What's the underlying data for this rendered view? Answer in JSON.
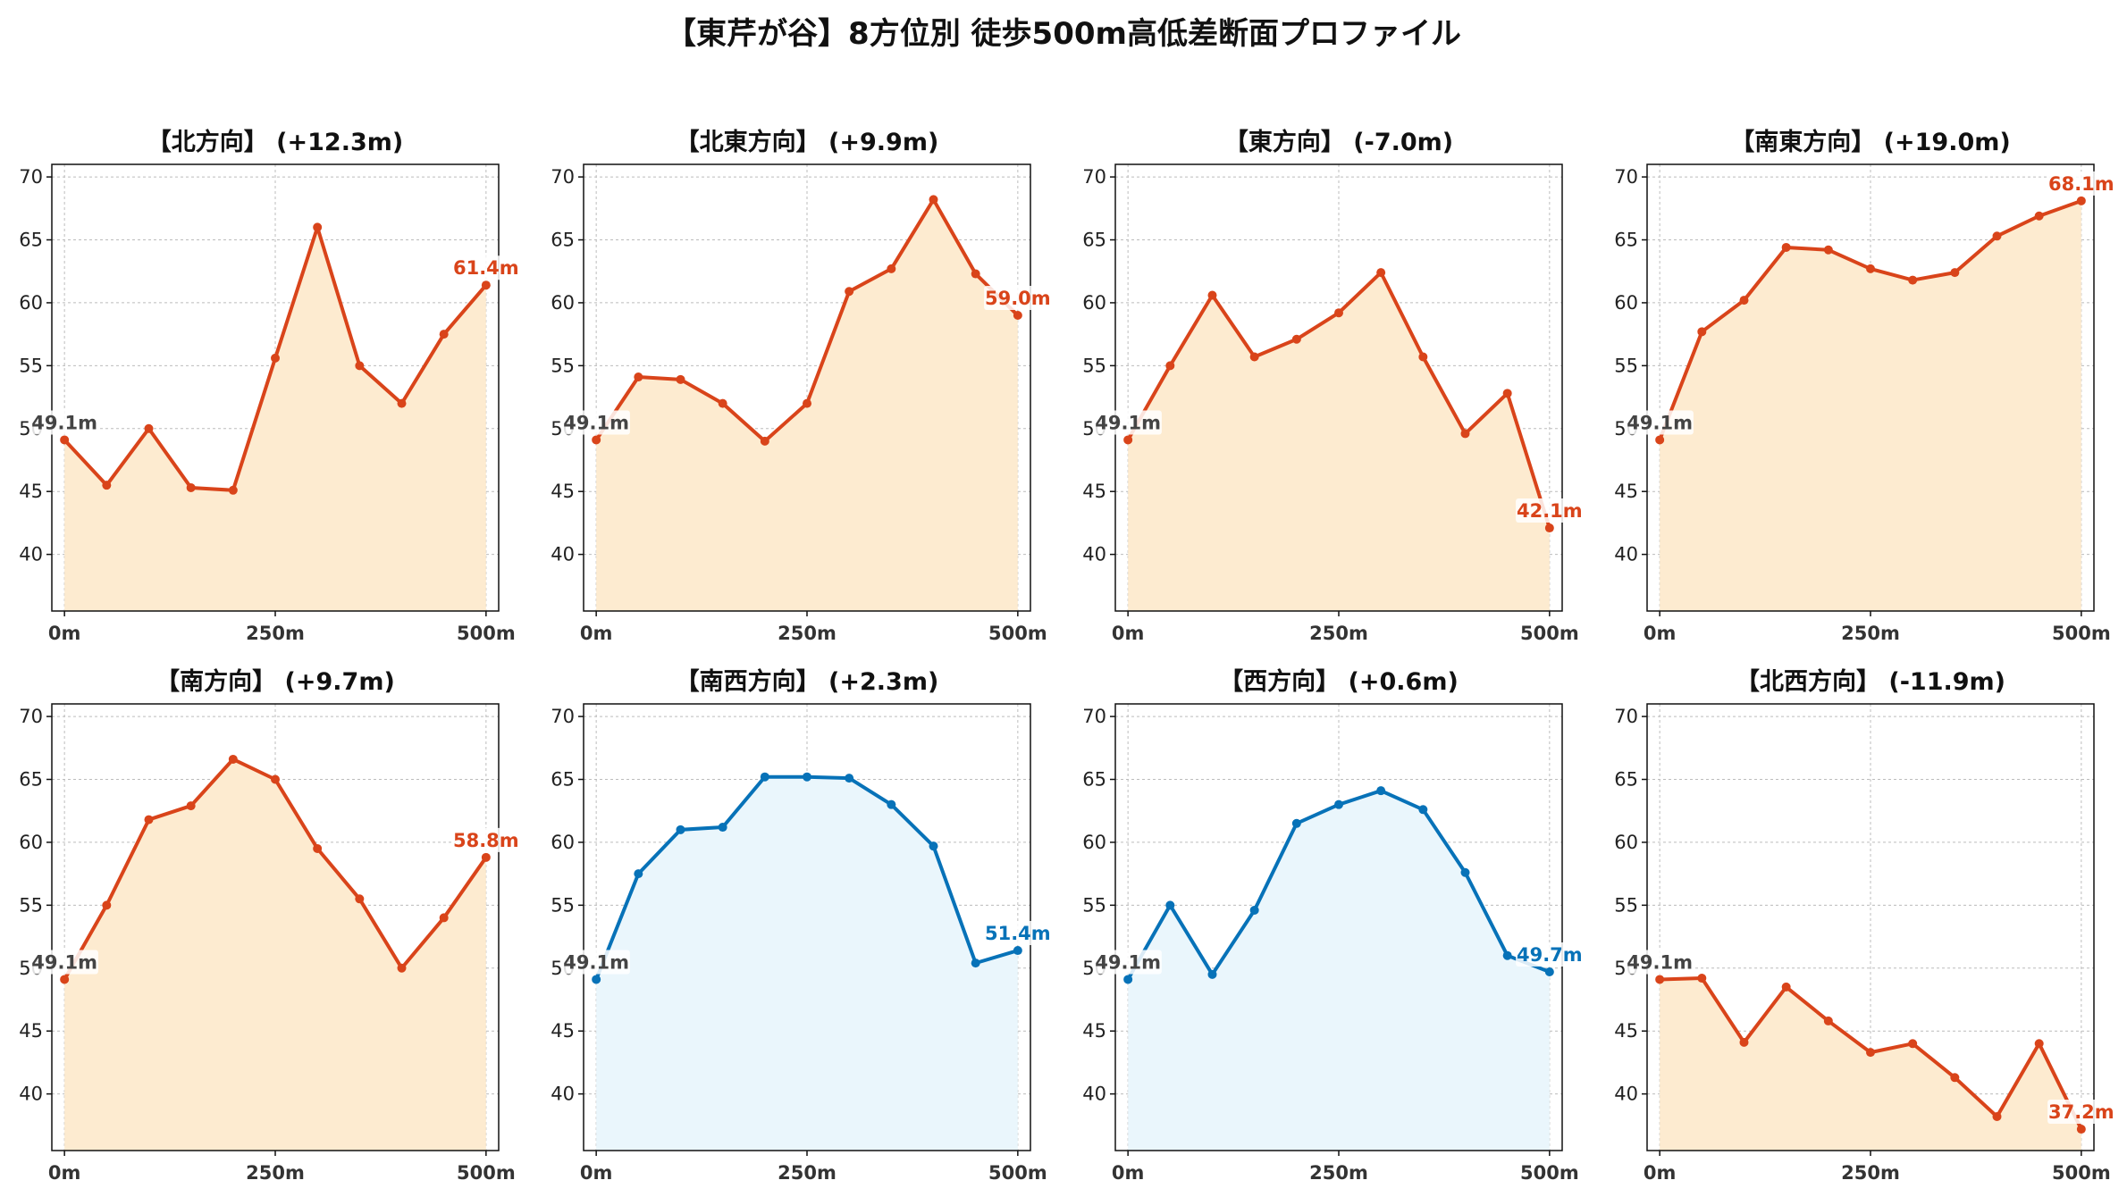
{
  "title": "【東芹が谷】8方位別 徒歩500m高低差断面プロファイル",
  "colors": {
    "up_line": "#d9441a",
    "up_fill": "#fdebd0",
    "down_line": "#0772b8",
    "down_fill": "#eaf6fc",
    "start_label": "#444444"
  },
  "chart_data": [
    {
      "type": "line",
      "title": "【北方向】 (+12.3m)",
      "trend": "up",
      "x": [
        0,
        50,
        100,
        150,
        200,
        250,
        300,
        350,
        400,
        450,
        500
      ],
      "values": [
        49.1,
        45.5,
        50.0,
        45.3,
        45.1,
        55.6,
        66.0,
        55.0,
        52.0,
        57.5,
        61.4
      ],
      "start_label": "49.1m",
      "end_label": "61.4m",
      "ylim": [
        35.5,
        71
      ],
      "xlim": [
        -15,
        515
      ],
      "yticks": [
        40,
        45,
        50,
        55,
        60,
        65,
        70
      ],
      "ytick_labels": [
        "40",
        "45",
        "50",
        "55",
        "60",
        "65",
        "70"
      ],
      "xticks": [
        0,
        250,
        500
      ],
      "xtick_labels": [
        "0m",
        "250m",
        "500m"
      ],
      "grid": true
    },
    {
      "type": "line",
      "title": "【北東方向】 (+9.9m)",
      "trend": "up",
      "x": [
        0,
        50,
        100,
        150,
        200,
        250,
        300,
        350,
        400,
        450,
        500
      ],
      "values": [
        49.1,
        54.1,
        53.9,
        52.0,
        49.0,
        52.0,
        60.9,
        62.7,
        68.2,
        62.3,
        59.0
      ],
      "start_label": "49.1m",
      "end_label": "59.0m",
      "ylim": [
        35.5,
        71
      ],
      "xlim": [
        -15,
        515
      ],
      "yticks": [
        40,
        45,
        50,
        55,
        60,
        65,
        70
      ],
      "ytick_labels": [
        "40",
        "45",
        "50",
        "55",
        "60",
        "65",
        "70"
      ],
      "xticks": [
        0,
        250,
        500
      ],
      "xtick_labels": [
        "0m",
        "250m",
        "500m"
      ],
      "grid": true
    },
    {
      "type": "line",
      "title": "【東方向】 (-7.0m)",
      "trend": "up",
      "x": [
        0,
        50,
        100,
        150,
        200,
        250,
        300,
        350,
        400,
        450,
        500
      ],
      "values": [
        49.1,
        55.0,
        60.6,
        55.7,
        57.1,
        59.2,
        62.4,
        55.7,
        49.6,
        52.8,
        42.1
      ],
      "start_label": "49.1m",
      "end_label": "42.1m",
      "ylim": [
        35.5,
        71
      ],
      "xlim": [
        -15,
        515
      ],
      "yticks": [
        40,
        45,
        50,
        55,
        60,
        65,
        70
      ],
      "ytick_labels": [
        "40",
        "45",
        "50",
        "55",
        "60",
        "65",
        "70"
      ],
      "xticks": [
        0,
        250,
        500
      ],
      "xtick_labels": [
        "0m",
        "250m",
        "500m"
      ],
      "grid": true
    },
    {
      "type": "line",
      "title": "【南東方向】 (+19.0m)",
      "trend": "up",
      "x": [
        0,
        50,
        100,
        150,
        200,
        250,
        300,
        350,
        400,
        450,
        500
      ],
      "values": [
        49.1,
        57.7,
        60.2,
        64.4,
        64.2,
        62.7,
        61.8,
        62.4,
        65.3,
        66.9,
        68.1
      ],
      "start_label": "49.1m",
      "end_label": "68.1m",
      "ylim": [
        35.5,
        71
      ],
      "xlim": [
        -15,
        515
      ],
      "yticks": [
        40,
        45,
        50,
        55,
        60,
        65,
        70
      ],
      "ytick_labels": [
        "40",
        "45",
        "50",
        "55",
        "60",
        "65",
        "70"
      ],
      "xticks": [
        0,
        250,
        500
      ],
      "xtick_labels": [
        "0m",
        "250m",
        "500m"
      ],
      "grid": true
    },
    {
      "type": "line",
      "title": "【南方向】 (+9.7m)",
      "trend": "up",
      "x": [
        0,
        50,
        100,
        150,
        200,
        250,
        300,
        350,
        400,
        450,
        500
      ],
      "values": [
        49.1,
        55.0,
        61.8,
        62.9,
        66.6,
        65.0,
        59.5,
        55.5,
        50.0,
        54.0,
        58.8
      ],
      "start_label": "49.1m",
      "end_label": "58.8m",
      "ylim": [
        35.5,
        71
      ],
      "xlim": [
        -15,
        515
      ],
      "yticks": [
        40,
        45,
        50,
        55,
        60,
        65,
        70
      ],
      "ytick_labels": [
        "40",
        "45",
        "50",
        "55",
        "60",
        "65",
        "70"
      ],
      "xticks": [
        0,
        250,
        500
      ],
      "xtick_labels": [
        "0m",
        "250m",
        "500m"
      ],
      "grid": true
    },
    {
      "type": "line",
      "title": "【南西方向】 (+2.3m)",
      "trend": "down",
      "x": [
        0,
        50,
        100,
        150,
        200,
        250,
        300,
        350,
        400,
        450,
        500
      ],
      "values": [
        49.1,
        57.5,
        61.0,
        61.2,
        65.2,
        65.2,
        65.1,
        63.0,
        59.7,
        50.4,
        51.4
      ],
      "start_label": "49.1m",
      "end_label": "51.4m",
      "ylim": [
        35.5,
        71
      ],
      "xlim": [
        -15,
        515
      ],
      "yticks": [
        40,
        45,
        50,
        55,
        60,
        65,
        70
      ],
      "ytick_labels": [
        "40",
        "45",
        "50",
        "55",
        "60",
        "65",
        "70"
      ],
      "xticks": [
        0,
        250,
        500
      ],
      "xtick_labels": [
        "0m",
        "250m",
        "500m"
      ],
      "grid": true
    },
    {
      "type": "line",
      "title": "【西方向】 (+0.6m)",
      "trend": "down",
      "x": [
        0,
        50,
        100,
        150,
        200,
        250,
        300,
        350,
        400,
        450,
        500
      ],
      "values": [
        49.1,
        55.0,
        49.5,
        54.6,
        61.5,
        63.0,
        64.1,
        62.6,
        57.6,
        51.0,
        49.7
      ],
      "start_label": "49.1m",
      "end_label": "49.7m",
      "ylim": [
        35.5,
        71
      ],
      "xlim": [
        -15,
        515
      ],
      "yticks": [
        40,
        45,
        50,
        55,
        60,
        65,
        70
      ],
      "ytick_labels": [
        "40",
        "45",
        "50",
        "55",
        "60",
        "65",
        "70"
      ],
      "xticks": [
        0,
        250,
        500
      ],
      "xtick_labels": [
        "0m",
        "250m",
        "500m"
      ],
      "grid": true
    },
    {
      "type": "line",
      "title": "【北西方向】 (-11.9m)",
      "trend": "up",
      "x": [
        0,
        50,
        100,
        150,
        200,
        250,
        300,
        350,
        400,
        450,
        500
      ],
      "values": [
        49.1,
        49.2,
        44.1,
        48.5,
        45.8,
        43.3,
        44.0,
        41.3,
        38.2,
        44.0,
        37.2
      ],
      "start_label": "49.1m",
      "end_label": "37.2m",
      "ylim": [
        35.5,
        71
      ],
      "xlim": [
        -15,
        515
      ],
      "yticks": [
        40,
        45,
        50,
        55,
        60,
        65,
        70
      ],
      "ytick_labels": [
        "40",
        "45",
        "50",
        "55",
        "60",
        "65",
        "70"
      ],
      "xticks": [
        0,
        250,
        500
      ],
      "xtick_labels": [
        "0m",
        "250m",
        "500m"
      ],
      "grid": true
    }
  ]
}
